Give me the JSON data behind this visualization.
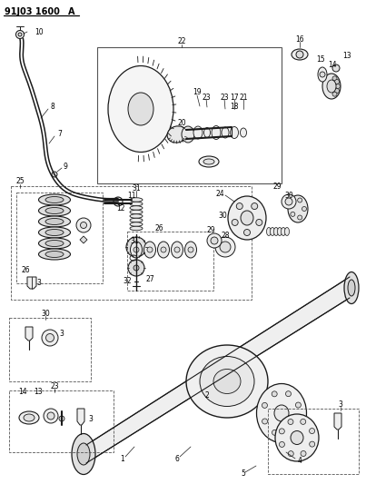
{
  "title": "91J03 1600",
  "title_suffix": "A",
  "bg_color": "#ffffff",
  "fig_width": 4.03,
  "fig_height": 5.33,
  "dpi": 100
}
